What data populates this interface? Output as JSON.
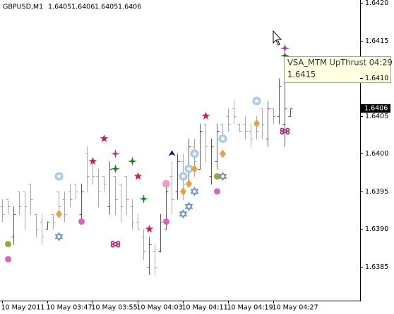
{
  "chart_data": {
    "type": "ohlc",
    "header": {
      "symbol": "GBPUSD,M1",
      "values": [
        1.6405,
        1.6406,
        1.6405,
        1.6406
      ]
    },
    "categories": [
      "10 May 2011",
      null,
      null,
      null,
      null,
      null,
      null,
      null,
      "10 May 03:47",
      null,
      null,
      null,
      null,
      null,
      null,
      null,
      "10 May 03:55",
      null,
      null,
      null,
      null,
      null,
      null,
      null,
      "10 May 04:03",
      null,
      null,
      null,
      null,
      null,
      null,
      null,
      "10 May 04:11",
      null,
      null,
      null,
      null,
      null,
      null,
      null,
      "10 May 04:19",
      null,
      null,
      null,
      null,
      null,
      null,
      null,
      "10 May 04:27",
      null,
      null,
      null
    ],
    "ohlc": [
      [
        1.6393,
        1.6394,
        1.6391,
        1.6392
      ],
      [
        1.6394,
        1.6394,
        1.6392,
        1.6393
      ],
      [
        1.6389,
        1.6393,
        1.6388,
        1.6392
      ],
      [
        1.6395,
        1.6395,
        1.6392,
        1.6393
      ],
      [
        1.6395,
        1.6395,
        1.639,
        1.6393
      ],
      [
        1.6396,
        1.6396,
        1.6392,
        1.6394
      ],
      [
        1.6392,
        1.6392,
        1.6389,
        1.639
      ],
      [
        1.6391,
        1.6392,
        1.6388,
        1.6389
      ],
      [
        1.639,
        1.6391,
        1.639,
        1.6391
      ],
      [
        1.6392,
        1.6392,
        1.639,
        1.6391
      ],
      [
        1.6395,
        1.6395,
        1.6392,
        1.6393
      ],
      [
        1.6394,
        1.6395,
        1.6391,
        1.6392
      ],
      [
        1.6395,
        1.6396,
        1.6393,
        1.6394
      ],
      [
        1.6396,
        1.6396,
        1.6394,
        1.6395
      ],
      [
        1.6392,
        1.6396,
        1.6391,
        1.6395
      ],
      [
        1.64,
        1.6401,
        1.6395,
        1.6397
      ],
      [
        1.6399,
        1.6399,
        1.6396,
        1.6397
      ],
      [
        1.6397,
        1.6398,
        1.6393,
        1.6395
      ],
      [
        1.6397,
        1.6397,
        1.6395,
        1.6396
      ],
      [
        1.6393,
        1.6399,
        1.6392,
        1.6398
      ],
      [
        1.6397,
        1.6397,
        1.6392,
        1.6394
      ],
      [
        1.6396,
        1.6396,
        1.6391,
        1.6393
      ],
      [
        1.6397,
        1.6397,
        1.6392,
        1.6394
      ],
      [
        1.6393,
        1.6394,
        1.639,
        1.6391
      ],
      [
        1.6391,
        1.6392,
        1.639,
        1.639
      ],
      [
        1.6389,
        1.639,
        1.6386,
        1.6387
      ],
      [
        1.6385,
        1.6389,
        1.6384,
        1.6388
      ],
      [
        1.6387,
        1.6388,
        1.6384,
        1.6385
      ],
      [
        1.6387,
        1.6392,
        1.6387,
        1.6391
      ],
      [
        1.639,
        1.6396,
        1.639,
        1.6395
      ],
      [
        1.6397,
        1.6399,
        1.6392,
        1.6394
      ],
      [
        1.6395,
        1.64,
        1.6394,
        1.6399
      ],
      [
        1.6399,
        1.64,
        1.6394,
        1.6396
      ],
      [
        1.6396,
        1.6402,
        1.6396,
        1.6401
      ],
      [
        1.6401,
        1.6402,
        1.6397,
        1.6399
      ],
      [
        1.6398,
        1.6404,
        1.6398,
        1.6403
      ],
      [
        1.6404,
        1.6404,
        1.6399,
        1.6401
      ],
      [
        1.6397,
        1.6402,
        1.6396,
        1.6401
      ],
      [
        1.6399,
        1.6404,
        1.6398,
        1.6403
      ],
      [
        1.6404,
        1.6404,
        1.6402,
        1.6402
      ],
      [
        1.6405,
        1.6406,
        1.6403,
        1.6404
      ],
      [
        1.6406,
        1.6407,
        1.6404,
        1.6405
      ],
      [
        1.6404,
        1.6404,
        1.6403,
        1.6403
      ],
      [
        1.6404,
        1.6405,
        1.6402,
        1.6403
      ],
      [
        1.6403,
        1.6404,
        1.6401,
        1.6402
      ],
      [
        1.6404,
        1.6405,
        1.6402,
        1.6403
      ],
      [
        1.6406,
        1.6406,
        1.6402,
        1.6404
      ],
      [
        1.6402,
        1.6407,
        1.6401,
        1.6406
      ],
      [
        1.6406,
        1.6406,
        1.6404,
        1.6405
      ],
      [
        1.6405,
        1.641,
        1.6404,
        1.6409
      ],
      [
        1.6404,
        1.6412,
        1.6401,
        1.6406
      ],
      [
        1.6405,
        1.6406,
        1.6405,
        1.6406
      ]
    ],
    "up_color": "#b8286a",
    "down_color": "#a8a8a8",
    "markers": [
      {
        "bar": 1,
        "value": 1.6388,
        "shape": "dot",
        "color": "#8cb030"
      },
      {
        "bar": 1,
        "value": 1.6386,
        "shape": "dot",
        "color": "#e060c0"
      },
      {
        "bar": 10,
        "value": 1.6397,
        "shape": "ring",
        "color": "#a8c8e8"
      },
      {
        "bar": 10,
        "value": 1.6392,
        "shape": "diamond",
        "color": "#e8a040"
      },
      {
        "bar": 10,
        "value": 1.6389,
        "shape": "hexagram",
        "color": "#6a90c8"
      },
      {
        "bar": 14,
        "value": 1.6391,
        "shape": "dot",
        "color": "#e060c0"
      },
      {
        "bar": 16,
        "value": 1.6399,
        "shape": "star5",
        "color": "#d8203c"
      },
      {
        "bar": 18,
        "value": 1.6402,
        "shape": "star5",
        "color": "#d8203c"
      },
      {
        "bar": 20,
        "value": 1.64,
        "shape": "star4",
        "color": "#b03090"
      },
      {
        "bar": 20,
        "value": 1.6398,
        "shape": "star4",
        "color": "#108010"
      },
      {
        "bar": 20,
        "value": 1.6388,
        "shape": "command",
        "color": "#b0207a"
      },
      {
        "bar": 23,
        "value": 1.6399,
        "shape": "star4",
        "color": "#108010"
      },
      {
        "bar": 24,
        "value": 1.6397,
        "shape": "star5",
        "color": "#d8203c"
      },
      {
        "bar": 25,
        "value": 1.6394,
        "shape": "star4",
        "color": "#108010"
      },
      {
        "bar": 26,
        "value": 1.639,
        "shape": "star5",
        "color": "#d8203c"
      },
      {
        "bar": 29,
        "value": 1.6396,
        "shape": "flower",
        "color": "#e8a0c8"
      },
      {
        "bar": 29,
        "value": 1.6391,
        "shape": "dot",
        "color": "#e060c0"
      },
      {
        "bar": 30,
        "value": 1.64,
        "shape": "triangle",
        "color": "#102080"
      },
      {
        "bar": 32,
        "value": 1.6397,
        "shape": "ring",
        "color": "#a8c8e8"
      },
      {
        "bar": 32,
        "value": 1.6395,
        "shape": "diamond",
        "color": "#e8a040"
      },
      {
        "bar": 32,
        "value": 1.6392,
        "shape": "hexagram",
        "color": "#6a90c8"
      },
      {
        "bar": 33,
        "value": 1.6398,
        "shape": "ring",
        "color": "#a8c8e8"
      },
      {
        "bar": 33,
        "value": 1.6396,
        "shape": "diamond",
        "color": "#e8a040"
      },
      {
        "bar": 33,
        "value": 1.6393,
        "shape": "hexagram",
        "color": "#6a90c8"
      },
      {
        "bar": 34,
        "value": 1.64,
        "shape": "ring",
        "color": "#a8c8e8"
      },
      {
        "bar": 34,
        "value": 1.6398,
        "shape": "diamond",
        "color": "#e8a040"
      },
      {
        "bar": 34,
        "value": 1.6395,
        "shape": "hexagram",
        "color": "#6a90c8"
      },
      {
        "bar": 36,
        "value": 1.6405,
        "shape": "star5",
        "color": "#d8203c"
      },
      {
        "bar": 38,
        "value": 1.6397,
        "shape": "dot",
        "color": "#8cb030"
      },
      {
        "bar": 38,
        "value": 1.6395,
        "shape": "dot",
        "color": "#e060c0"
      },
      {
        "bar": 39,
        "value": 1.6402,
        "shape": "ring",
        "color": "#a8c8e8"
      },
      {
        "bar": 39,
        "value": 1.64,
        "shape": "diamond",
        "color": "#e8a040"
      },
      {
        "bar": 39,
        "value": 1.6397,
        "shape": "hexagram",
        "color": "#6a90c8"
      },
      {
        "bar": 45,
        "value": 1.6407,
        "shape": "ring",
        "color": "#a8c8e8"
      },
      {
        "bar": 45,
        "value": 1.6404,
        "shape": "diamond",
        "color": "#e8a040"
      },
      {
        "bar": 50,
        "value": 1.6414,
        "shape": "star4",
        "color": "#b03090"
      },
      {
        "bar": 50,
        "value": 1.6413,
        "shape": "star4",
        "color": "#108010"
      },
      {
        "bar": 50,
        "value": 1.6403,
        "shape": "command",
        "color": "#b0207a"
      }
    ],
    "ylim": [
      1.63806,
      1.64204
    ],
    "yticks": [
      {
        "value": 1.642,
        "label": "1.6420"
      },
      1.6415,
      {
        "value": 1.641,
        "label": "1.6410"
      },
      1.6405,
      {
        "value": 1.64,
        "label": "1.6400"
      },
      1.6395,
      {
        "value": 1.639,
        "label": "1.6390"
      },
      1.6385
    ],
    "current_price": 1.6406,
    "tooltip": {
      "title": "VSA_MTM  UpThrust 04:29",
      "value": 1.6415
    }
  }
}
